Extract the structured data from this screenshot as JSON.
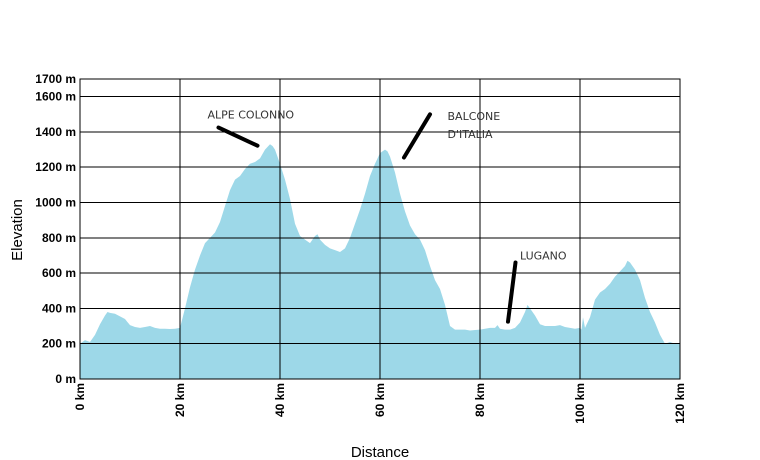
{
  "chart_data": {
    "type": "area",
    "xlabel": "Distance",
    "ylabel": "Elevation",
    "xlim": [
      0,
      120
    ],
    "ylim": [
      0,
      1700
    ],
    "x_ticks": [
      {
        "value": 0,
        "label": "0 km"
      },
      {
        "value": 20,
        "label": "20 km"
      },
      {
        "value": 40,
        "label": "40 km"
      },
      {
        "value": 60,
        "label": "60 km"
      },
      {
        "value": 80,
        "label": "80 km"
      },
      {
        "value": 100,
        "label": "100 km"
      },
      {
        "value": 120,
        "label": "120 km"
      }
    ],
    "y_ticks": [
      {
        "value": 0,
        "label": "0 m"
      },
      {
        "value": 200,
        "label": "200 m"
      },
      {
        "value": 400,
        "label": "400 m"
      },
      {
        "value": 600,
        "label": "600 m"
      },
      {
        "value": 800,
        "label": "800 m"
      },
      {
        "value": 1000,
        "label": "1000 m"
      },
      {
        "value": 1200,
        "label": "1200 m"
      },
      {
        "value": 1400,
        "label": "1400 m"
      },
      {
        "value": 1600,
        "label": "1600 m"
      },
      {
        "value": 1700,
        "label": "1700 m"
      }
    ],
    "grid": true,
    "fill_color": "#9dd8e8",
    "series": [
      {
        "x": [
          0,
          1,
          2,
          3,
          4,
          5,
          5.5,
          6,
          7,
          8,
          9,
          10,
          11,
          12,
          13,
          14,
          15,
          16,
          17,
          18,
          19,
          20,
          21,
          22,
          23,
          24,
          25,
          26,
          27,
          28,
          29,
          30,
          31,
          32,
          33,
          34,
          35,
          36,
          37,
          38,
          38.5,
          39,
          40,
          41,
          42,
          43,
          44,
          45,
          46,
          47,
          47.5,
          48,
          49,
          50,
          51,
          52,
          53,
          54,
          55,
          56,
          57,
          58,
          59,
          60,
          61,
          61.5,
          62,
          63,
          64,
          65,
          66,
          67,
          68,
          69,
          70,
          71,
          72,
          73,
          74,
          75,
          76,
          77,
          78,
          79,
          80,
          81,
          82,
          83,
          83.5,
          84,
          85,
          86,
          87,
          88,
          89,
          89.5,
          90,
          91,
          92,
          93,
          94,
          95,
          96,
          97,
          98,
          99,
          100,
          100.3,
          100.6,
          101,
          102,
          103,
          104,
          105,
          106,
          107,
          108,
          109,
          109.5,
          110,
          111,
          112,
          113,
          114,
          115,
          116,
          117,
          118,
          119,
          120
        ],
        "y": [
          200,
          220,
          210,
          250,
          310,
          360,
          380,
          375,
          370,
          355,
          340,
          305,
          295,
          290,
          295,
          300,
          290,
          285,
          285,
          283,
          285,
          290,
          400,
          520,
          620,
          700,
          770,
          800,
          830,
          890,
          980,
          1070,
          1130,
          1150,
          1190,
          1220,
          1230,
          1250,
          1300,
          1330,
          1320,
          1300,
          1220,
          1130,
          1020,
          880,
          810,
          790,
          770,
          810,
          820,
          790,
          760,
          740,
          730,
          720,
          740,
          800,
          880,
          960,
          1050,
          1150,
          1220,
          1280,
          1300,
          1290,
          1260,
          1170,
          1050,
          950,
          870,
          820,
          790,
          730,
          640,
          560,
          510,
          420,
          300,
          280,
          280,
          280,
          275,
          278,
          280,
          285,
          290,
          290,
          305,
          285,
          280,
          280,
          290,
          320,
          380,
          420,
          400,
          360,
          310,
          300,
          300,
          300,
          305,
          295,
          290,
          285,
          290,
          280,
          350,
          290,
          350,
          450,
          490,
          510,
          540,
          580,
          610,
          640,
          670,
          660,
          620,
          560,
          460,
          380,
          320,
          250,
          200,
          210,
          200,
          200
        ]
      }
    ],
    "annotations": [
      {
        "lines": [
          "ALPE COLONNO"
        ],
        "x": 25.5,
        "y": 1500,
        "pointer_from": [
          27.7,
          1425
        ],
        "pointer_to": [
          35.5,
          1322
        ]
      },
      {
        "lines": [
          "BALCONE",
          "D'ITALIA"
        ],
        "x": 73.5,
        "y": 1490,
        "pointer_from": [
          70,
          1500
        ],
        "pointer_to": [
          64.8,
          1255
        ]
      },
      {
        "lines": [
          "LUGANO"
        ],
        "x": 88,
        "y": 700,
        "pointer_from": [
          87.1,
          660
        ],
        "pointer_to": [
          85.6,
          325
        ]
      }
    ]
  }
}
